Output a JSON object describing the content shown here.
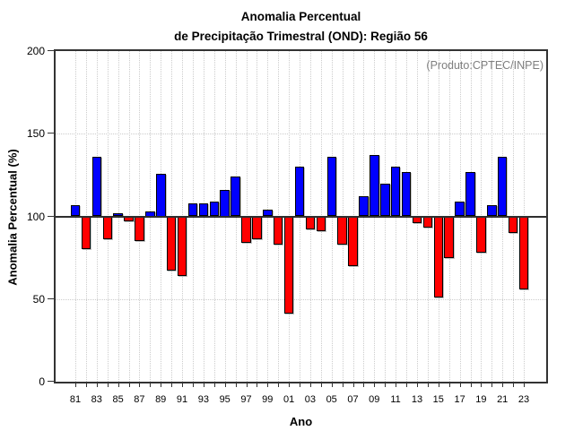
{
  "title": {
    "line1": "Anomalia Percentual",
    "line2": "de Precipitação Trimestral (OND): Região 56"
  },
  "annotation": "(Produto:CPTEC/INPE)",
  "chart_data": {
    "type": "bar",
    "title": "Anomalia Percentual de Precipitação Trimestral (OND): Região 56",
    "xlabel": "Ano",
    "ylabel": "Anomalia Percentual (%)",
    "ylim": [
      0,
      200
    ],
    "yticks": [
      0,
      50,
      100,
      150,
      200
    ],
    "hgridlines": [
      50,
      100,
      150
    ],
    "baseline": 100,
    "grid": "dotted",
    "legend": "none",
    "years": [
      1981,
      1982,
      1983,
      1984,
      1985,
      1986,
      1987,
      1988,
      1989,
      1990,
      1991,
      1992,
      1993,
      1994,
      1995,
      1996,
      1997,
      1998,
      1999,
      2000,
      2001,
      2002,
      2003,
      2004,
      2005,
      2006,
      2007,
      2008,
      2009,
      2010,
      2011,
      2012,
      2013,
      2014,
      2015,
      2016,
      2017,
      2018,
      2019,
      2020,
      2021,
      2022,
      2023
    ],
    "values": [
      107,
      80,
      136,
      86,
      102,
      97,
      85,
      103,
      126,
      67,
      64,
      108,
      108,
      109,
      116,
      124,
      84,
      86,
      104,
      83,
      41,
      130,
      92,
      91,
      136,
      83,
      70,
      112,
      137,
      120,
      130,
      127,
      96,
      93,
      51,
      75,
      109,
      127,
      78,
      107,
      136,
      90,
      56
    ],
    "x_tick_labels": [
      "81",
      "83",
      "85",
      "87",
      "89",
      "91",
      "93",
      "95",
      "97",
      "99",
      "01",
      "03",
      "05",
      "07",
      "09",
      "11",
      "13",
      "15",
      "17",
      "19",
      "21",
      "23"
    ],
    "colors": {
      "above_baseline": "#0000ff",
      "below_baseline": "#ff0000",
      "bar_outline": "#000000",
      "annotation_text": "#7f7f7f",
      "grid": "#cccccc",
      "axis": "#333333"
    }
  }
}
